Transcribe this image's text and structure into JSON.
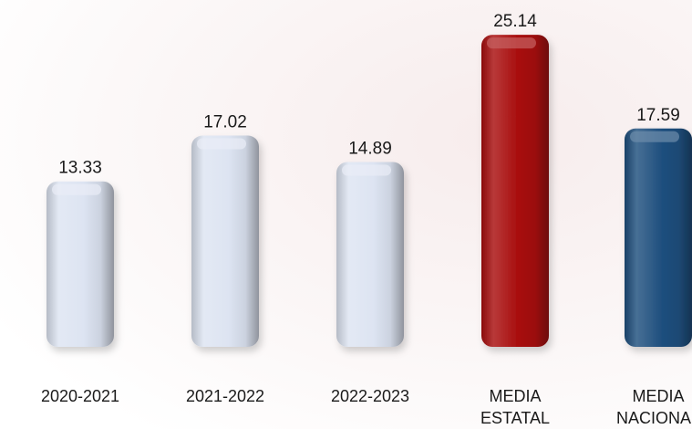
{
  "chart_data": {
    "type": "bar",
    "title": "",
    "xlabel": "",
    "ylabel": "",
    "categories": [
      [
        "2020-2021"
      ],
      [
        "2021-2022"
      ],
      [
        "2022-2023"
      ],
      [
        "MEDIA",
        "ESTATAL"
      ],
      [
        "MEDIA",
        "NACIONAL"
      ]
    ],
    "values": [
      13.33,
      17.02,
      14.89,
      25.14,
      17.59
    ],
    "value_labels": [
      "13.33",
      "17.02",
      "14.89",
      "25.14",
      "17.59"
    ],
    "bar_colors": [
      "#dde4f2",
      "#dde4f2",
      "#dde4f2",
      "#a80d0d",
      "#1f4f7e"
    ],
    "ylim": [
      0,
      26
    ],
    "grid": false,
    "legend": "none"
  }
}
